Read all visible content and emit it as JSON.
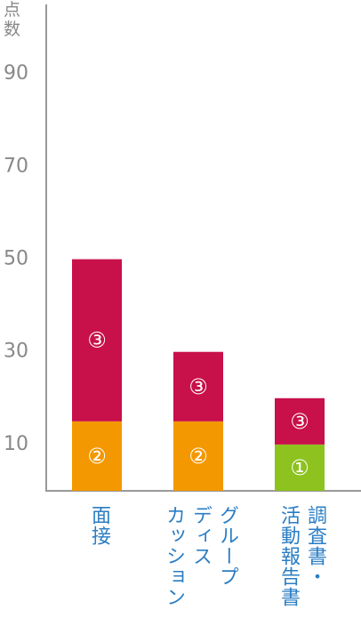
{
  "chart_data": {
    "type": "stacked_bar",
    "y_label": "点数",
    "categories": [
      "面接",
      "グループ\nディス\nカッション",
      "調査書・\n活動報告書"
    ],
    "series": [
      {
        "name": "②",
        "color": "#f39800",
        "values": [
          15,
          15,
          null
        ]
      },
      {
        "name": "①",
        "color": "#8dc21f",
        "values": [
          null,
          null,
          10
        ]
      },
      {
        "name": "③",
        "color": "#c8104a",
        "values": [
          35,
          15,
          10
        ]
      }
    ],
    "ylim": [
      0,
      105
    ],
    "yticks": [
      10,
      30,
      50,
      70,
      90
    ],
    "grid": false
  }
}
